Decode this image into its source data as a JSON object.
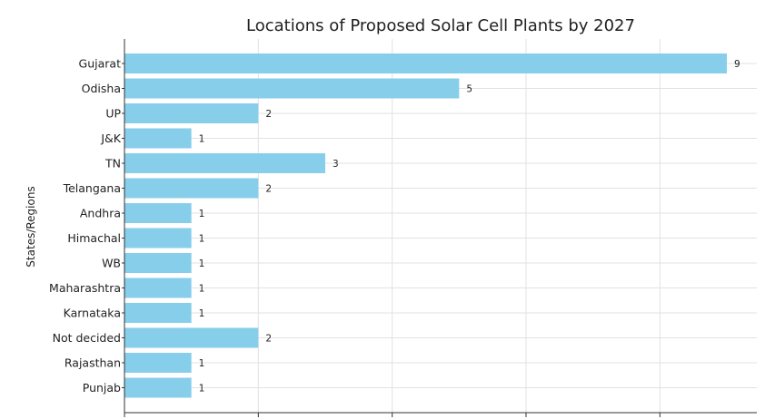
{
  "chart_data": {
    "type": "bar",
    "orientation": "horizontal",
    "title": "Locations of Proposed Solar Cell Plants by 2027",
    "ylabel": "States/Regions",
    "xlabel": "",
    "categories": [
      "Gujarat",
      "Odisha",
      "UP",
      "J&K",
      "TN",
      "Telangana",
      "Andhra",
      "Himachal",
      "WB",
      "Maharashtra",
      "Karnataka",
      "Not decided",
      "Rajasthan",
      "Punjab"
    ],
    "values": [
      9,
      5,
      2,
      1,
      3,
      2,
      1,
      1,
      1,
      1,
      1,
      2,
      1,
      1
    ],
    "xlim": [
      0,
      9.3
    ],
    "x_ticks": [
      0,
      2,
      4,
      6,
      8
    ],
    "grid": true,
    "bar_color": "#87ceeb"
  }
}
